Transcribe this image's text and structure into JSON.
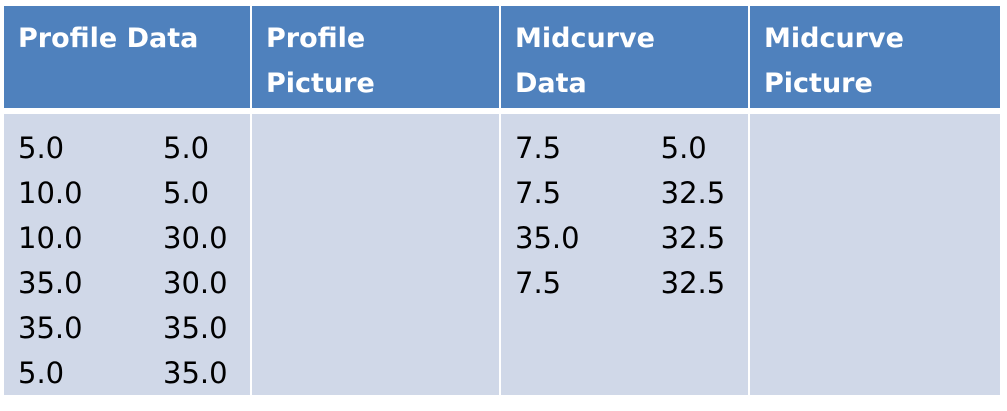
{
  "headers": {
    "profile_data": "Profile Data",
    "profile_picture_line1": "Profile",
    "profile_picture_line2": "Picture",
    "midcurve_data_line1": "Midcurve",
    "midcurve_data_line2": "Data",
    "midcurve_picture_line1": "Midcurve",
    "midcurve_picture_line2": "Picture"
  },
  "profile_data": [
    [
      "5.0",
      "5.0"
    ],
    [
      "10.0",
      "5.0"
    ],
    [
      "10.0",
      "30.0"
    ],
    [
      "35.0",
      "30.0"
    ],
    [
      "35.0",
      "35.0"
    ],
    [
      "5.0",
      "35.0"
    ]
  ],
  "midcurve_data": [
    [
      "7.5",
      "5.0"
    ],
    [
      "7.5",
      "32.5"
    ],
    [
      "35.0",
      "32.5"
    ],
    [
      "7.5",
      "32.5"
    ]
  ],
  "colors": {
    "header_bg": "#4f81bd",
    "body_bg": "#d0d8e8",
    "header_text": "#ffffff"
  }
}
